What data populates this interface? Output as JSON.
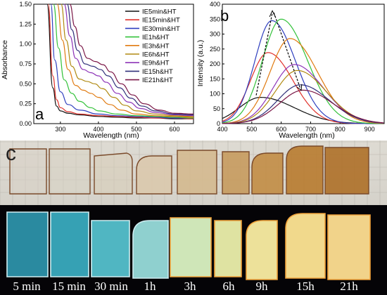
{
  "chart_data": [
    {
      "panel_label": "a",
      "type": "line",
      "xlabel": "Wavelength (nm)",
      "ylabel": "Absorbance",
      "xlim": [
        230,
        650
      ],
      "ylim": [
        0,
        1.5
      ],
      "xticks": [
        300,
        400,
        500,
        600
      ],
      "yticks": [
        0.0,
        0.25,
        0.5,
        0.75,
        1.0,
        1.25,
        1.5
      ],
      "ytick_labels": [
        "0.00",
        "0.25",
        "0.50",
        "0.75",
        "1.00",
        "1.25",
        "1.50"
      ],
      "grid": false,
      "legend_placement": "top-right",
      "series": [
        {
          "name": "IE5min&HT",
          "color": "#111111",
          "x": [
            265,
            280,
            290,
            300,
            320,
            350,
            400,
            450,
            500,
            550,
            600,
            650
          ],
          "y": [
            1.5,
            0.45,
            0.22,
            0.16,
            0.13,
            0.11,
            0.09,
            0.08,
            0.07,
            0.07,
            0.06,
            0.06
          ]
        },
        {
          "name": "IE15min&HT",
          "color": "#e0302a",
          "x": [
            268,
            280,
            290,
            300,
            320,
            350,
            400,
            450,
            500,
            550,
            600,
            650
          ],
          "y": [
            1.5,
            0.6,
            0.3,
            0.2,
            0.15,
            0.12,
            0.1,
            0.09,
            0.08,
            0.07,
            0.07,
            0.06
          ]
        },
        {
          "name": "IE30min&HT",
          "color": "#2f3fbf",
          "x": [
            275,
            285,
            300,
            320,
            350,
            400,
            450,
            500,
            550,
            600,
            650
          ],
          "y": [
            1.5,
            0.8,
            0.4,
            0.24,
            0.17,
            0.12,
            0.1,
            0.09,
            0.08,
            0.07,
            0.07
          ]
        },
        {
          "name": "IE1h&HT",
          "color": "#33c23a",
          "x": [
            282,
            295,
            310,
            330,
            350,
            380,
            400,
            450,
            500,
            550,
            600,
            650
          ],
          "y": [
            1.5,
            0.95,
            0.55,
            0.38,
            0.28,
            0.2,
            0.16,
            0.12,
            0.1,
            0.09,
            0.08,
            0.07
          ]
        },
        {
          "name": "IE3h&HT",
          "color": "#e07a10",
          "x": [
            292,
            305,
            320,
            340,
            360,
            380,
            400,
            430,
            460,
            500,
            550,
            600,
            650
          ],
          "y": [
            1.5,
            1.05,
            0.68,
            0.48,
            0.42,
            0.38,
            0.33,
            0.24,
            0.17,
            0.12,
            0.1,
            0.09,
            0.08
          ]
        },
        {
          "name": "IE6h&HT",
          "color": "#b08a12",
          "x": [
            302,
            315,
            330,
            350,
            370,
            390,
            410,
            440,
            470,
            500,
            550,
            600,
            650
          ],
          "y": [
            1.5,
            1.05,
            0.72,
            0.56,
            0.53,
            0.5,
            0.44,
            0.33,
            0.23,
            0.16,
            0.12,
            0.1,
            0.09
          ]
        },
        {
          "name": "IE9h&HT",
          "color": "#8e35b8",
          "x": [
            310,
            325,
            340,
            360,
            380,
            400,
            420,
            450,
            480,
            510,
            550,
            600,
            650
          ],
          "y": [
            1.5,
            1.1,
            0.82,
            0.68,
            0.64,
            0.6,
            0.52,
            0.38,
            0.27,
            0.19,
            0.14,
            0.11,
            0.1
          ]
        },
        {
          "name": "IE15h&HT",
          "color": "#30307a",
          "x": [
            318,
            330,
            345,
            365,
            385,
            405,
            425,
            455,
            485,
            515,
            550,
            600,
            650
          ],
          "y": [
            1.5,
            1.18,
            0.92,
            0.75,
            0.72,
            0.68,
            0.6,
            0.45,
            0.32,
            0.22,
            0.16,
            0.12,
            0.11
          ]
        },
        {
          "name": "IE21h&HT",
          "color": "#7a1646",
          "x": [
            325,
            338,
            352,
            372,
            392,
            412,
            432,
            460,
            490,
            520,
            560,
            600,
            650
          ],
          "y": [
            1.5,
            1.22,
            0.98,
            0.82,
            0.78,
            0.74,
            0.65,
            0.5,
            0.36,
            0.25,
            0.17,
            0.13,
            0.12
          ]
        }
      ]
    },
    {
      "panel_label": "b",
      "type": "line",
      "xlabel": "Wavelength (nm)",
      "ylabel": "Intensity (a.u.)",
      "xlim": [
        400,
        950
      ],
      "ylim": [
        0,
        400
      ],
      "xticks": [
        400,
        500,
        600,
        700,
        800,
        900
      ],
      "yticks": [
        0,
        50,
        100,
        150,
        200,
        250,
        300,
        350,
        400
      ],
      "grid": false,
      "series": [
        {
          "color": "#111111",
          "peak": 530,
          "amp": 88,
          "sl": 85,
          "sr": 135
        },
        {
          "color": "#e0302a",
          "peak": 555,
          "amp": 238,
          "sl": 70,
          "sr": 100
        },
        {
          "color": "#2f3fbf",
          "peak": 568,
          "amp": 345,
          "sl": 68,
          "sr": 95
        },
        {
          "color": "#33c23a",
          "peak": 600,
          "amp": 350,
          "sl": 75,
          "sr": 105
        },
        {
          "color": "#e07a10",
          "peak": 630,
          "amp": 285,
          "sl": 80,
          "sr": 110
        },
        {
          "color": "#8e35b8",
          "peak": 645,
          "amp": 198,
          "sl": 85,
          "sr": 115
        },
        {
          "color": "#b08a12",
          "peak": 655,
          "amp": 178,
          "sl": 88,
          "sr": 115
        },
        {
          "color": "#30307a",
          "peak": 665,
          "amp": 130,
          "sl": 90,
          "sr": 115
        },
        {
          "color": "#7a1646",
          "peak": 675,
          "amp": 112,
          "sl": 95,
          "sr": 118
        }
      ]
    }
  ],
  "photo": {
    "panel_label": "c",
    "labels": [
      "5 min",
      "15 min",
      "30 min",
      "1h",
      "3h",
      "6h",
      "9h",
      "15h",
      "21h"
    ],
    "daylight_colors": [
      "#d8d2c6",
      "#d9d3c5",
      "#d9cdb8",
      "#dac9ad",
      "#d4b98f",
      "#c79b5e",
      "#c28d45",
      "#b87b2f",
      "#ae7028"
    ],
    "uv_colors": [
      "#2a8aa0",
      "#36a1b4",
      "#50b6c2",
      "#8fd0cf",
      "#cfe6b8",
      "#dfe3a2",
      "#ede19a",
      "#f1d98c",
      "#f1d38a"
    ]
  }
}
